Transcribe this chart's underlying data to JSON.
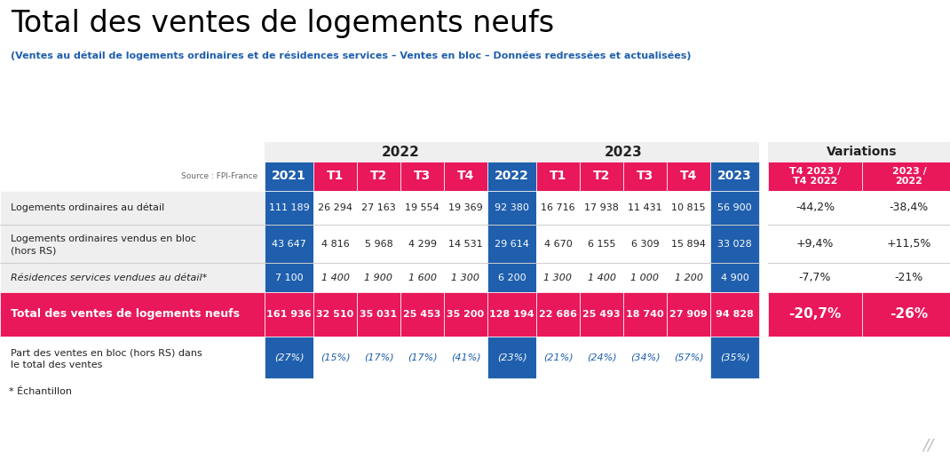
{
  "title": "Total des ventes de logements neufs",
  "subtitle": "(Ventes au détail de logements ordinaires et de résidences services – Ventes en bloc – Données redressées et actualisées)",
  "source": "Source : FPI-France",
  "footnote": "* Échantillon",
  "color_blue": "#1F5FAD",
  "color_pink": "#E8185A",
  "color_light_gray": "#EFEFEF",
  "color_white": "#FFFFFF",
  "rows": [
    {
      "label": "Logements ordinaires au détail",
      "label2": "",
      "bg": "gray",
      "italic": false,
      "bold": false,
      "values": [
        "111 189",
        "26 294",
        "27 163",
        "19 554",
        "19 369",
        "92 380",
        "16 716",
        "17 938",
        "11 431",
        "10 815",
        "56 900"
      ],
      "var1": "-44,2%",
      "var2": "-38,4%",
      "val_colors": [
        "blue",
        "white",
        "white",
        "white",
        "white",
        "blue",
        "white",
        "white",
        "white",
        "white",
        "blue"
      ]
    },
    {
      "label": "Logements ordinaires vendus en bloc",
      "label2": "(hors RS)",
      "bg": "gray",
      "italic": false,
      "bold": false,
      "values": [
        "43 647",
        "4 816",
        "5 968",
        "4 299",
        "14 531",
        "29 614",
        "4 670",
        "6 155",
        "6 309",
        "15 894",
        "33 028"
      ],
      "var1": "+9,4%",
      "var2": "+11,5%",
      "val_colors": [
        "blue",
        "white",
        "white",
        "white",
        "white",
        "blue",
        "white",
        "white",
        "white",
        "white",
        "blue"
      ]
    },
    {
      "label": "Résidences services vendues au détail*",
      "label2": "",
      "bg": "gray",
      "italic": true,
      "bold": false,
      "values": [
        "7 100",
        "1 400",
        "1 900",
        "1 600",
        "1 300",
        "6 200",
        "1 300",
        "1 400",
        "1 000",
        "1 200",
        "4 900"
      ],
      "var1": "-7,7%",
      "var2": "-21%",
      "val_colors": [
        "blue",
        "white",
        "white",
        "white",
        "white",
        "blue",
        "white",
        "white",
        "white",
        "white",
        "blue"
      ]
    },
    {
      "label": "Total des ventes de logements neufs",
      "label2": "",
      "bg": "pink",
      "italic": false,
      "bold": true,
      "values": [
        "161 936",
        "32 510",
        "35 031",
        "25 453",
        "35 200",
        "128 194",
        "22 686",
        "25 493",
        "18 740",
        "27 909",
        "94 828"
      ],
      "var1": "-20,7%",
      "var2": "-26%",
      "val_colors": [
        "pink",
        "pink",
        "pink",
        "pink",
        "pink",
        "pink",
        "pink",
        "pink",
        "pink",
        "pink",
        "pink"
      ]
    },
    {
      "label": "Part des ventes en bloc (hors RS) dans",
      "label2": "le total des ventes",
      "bg": "white",
      "italic": false,
      "bold": false,
      "values": [
        "(27%)",
        "(15%)",
        "(17%)",
        "(17%)",
        "(41%)",
        "(23%)",
        "(21%)",
        "(24%)",
        "(34%)",
        "(57%)",
        "(35%)"
      ],
      "var1": "",
      "var2": "",
      "val_colors": [
        "blue",
        "white",
        "white",
        "white",
        "white",
        "blue",
        "white",
        "white",
        "white",
        "white",
        "blue"
      ]
    }
  ]
}
